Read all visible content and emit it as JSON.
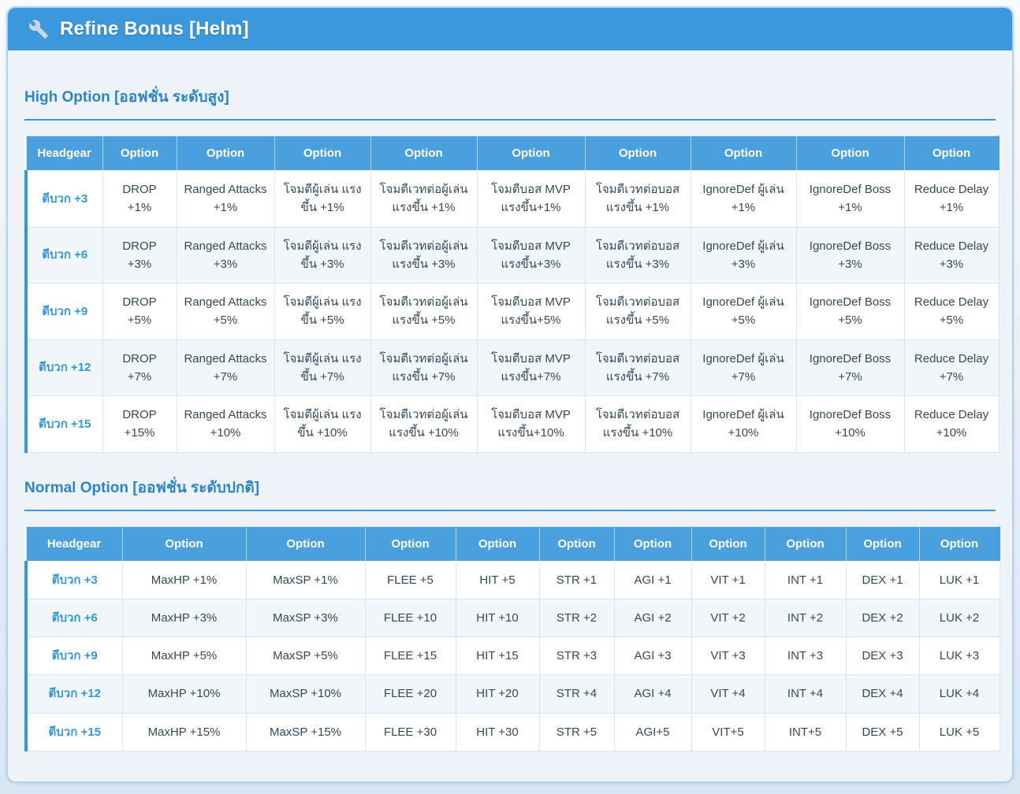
{
  "window": {
    "title": "Refine Bonus [Helm]",
    "title_icon": "wrench-icon"
  },
  "colors": {
    "titlebar_blue": "#3b98dc",
    "table_header_blue": "#4aa0dd",
    "accent_blue": "#3498db",
    "heading_blue": "#2b85c8",
    "cell_text": "#34495e",
    "alt_row_tint": "#f1f6fb",
    "panel_bg": "#eef3fa",
    "panel_border": "#b3d1ed"
  },
  "sections": [
    {
      "heading": "High Option [ออฟชั่น ระดับสูง]",
      "columns": [
        "Headgear",
        "Option",
        "Option",
        "Option",
        "Option",
        "Option",
        "Option",
        "Option",
        "Option",
        "Option"
      ],
      "rows": [
        {
          "headgear": "ตีบวก +3",
          "options": [
            "DROP +1%",
            "Ranged Attacks +1%",
            "โจมตีผู้เล่น แรงขึ้น +1%",
            "โจมตีเวทต่อผู้เล่น แรงขึ้น +1%",
            "โจมตีบอส MVP แรงขึ้น+1%",
            "โจมตีเวทต่อบอส แรงขึ้น +1%",
            "IgnoreDef ผู้เล่น +1%",
            "IgnoreDef Boss +1%",
            "Reduce Delay +1%"
          ]
        },
        {
          "headgear": "ตีบวก +6",
          "options": [
            "DROP +3%",
            "Ranged Attacks +3%",
            "โจมตีผู้เล่น แรงขึ้น +3%",
            "โจมตีเวทต่อผู้เล่น แรงขึ้น +3%",
            "โจมตีบอส MVP แรงขึ้น+3%",
            "โจมตีเวทต่อบอส แรงขึ้น +3%",
            "IgnoreDef ผู้เล่น +3%",
            "IgnoreDef Boss +3%",
            "Reduce Delay +3%"
          ]
        },
        {
          "headgear": "ตีบวก +9",
          "options": [
            "DROP +5%",
            "Ranged Attacks +5%",
            "โจมตีผู้เล่น แรงขึ้น +5%",
            "โจมตีเวทต่อผู้เล่น แรงขึ้น +5%",
            "โจมตีบอส MVP แรงขึ้น+5%",
            "โจมตีเวทต่อบอส แรงขึ้น +5%",
            "IgnoreDef ผู้เล่น +5%",
            "IgnoreDef Boss +5%",
            "Reduce Delay +5%"
          ]
        },
        {
          "headgear": "ตีบวก +12",
          "options": [
            "DROP +7%",
            "Ranged Attacks +7%",
            "โจมตีผู้เล่น แรงขึ้น +7%",
            "โจมตีเวทต่อผู้เล่น แรงขึ้น +7%",
            "โจมตีบอส MVP แรงขึ้น+7%",
            "โจมตีเวทต่อบอส แรงขึ้น +7%",
            "IgnoreDef ผู้เล่น +7%",
            "IgnoreDef Boss +7%",
            "Reduce Delay +7%"
          ]
        },
        {
          "headgear": "ตีบวก +15",
          "options": [
            "DROP +15%",
            "Ranged Attacks +10%",
            "โจมตีผู้เล่น แรงขึ้น +10%",
            "โจมตีเวทต่อผู้เล่น แรงขึ้น +10%",
            "โจมตีบอส MVP แรงขึ้น+10%",
            "โจมตีเวทต่อบอส แรงขึ้น +10%",
            "IgnoreDef ผู้เล่น +10%",
            "IgnoreDef Boss +10%",
            "Reduce Delay +10%"
          ]
        }
      ]
    },
    {
      "heading": "Normal Option [ออฟชั่น ระดับปกติ]",
      "columns": [
        "Headgear",
        "Option",
        "Option",
        "Option",
        "Option",
        "Option",
        "Option",
        "Option",
        "Option",
        "Option",
        "Option"
      ],
      "rows": [
        {
          "headgear": "ตีบวก +3",
          "options": [
            "MaxHP +1%",
            "MaxSP +1%",
            "FLEE +5",
            "HIT +5",
            "STR +1",
            "AGI +1",
            "VIT +1",
            "INT +1",
            "DEX +1",
            "LUK +1"
          ]
        },
        {
          "headgear": "ตีบวก +6",
          "options": [
            "MaxHP +3%",
            "MaxSP +3%",
            "FLEE +10",
            "HIT +10",
            "STR +2",
            "AGI +2",
            "VIT +2",
            "INT +2",
            "DEX +2",
            "LUK +2"
          ]
        },
        {
          "headgear": "ตีบวก +9",
          "options": [
            "MaxHP +5%",
            "MaxSP +5%",
            "FLEE +15",
            "HIT +15",
            "STR +3",
            "AGI +3",
            "VIT +3",
            "INT +3",
            "DEX +3",
            "LUK +3"
          ]
        },
        {
          "headgear": "ตีบวก +12",
          "options": [
            "MaxHP +10%",
            "MaxSP +10%",
            "FLEE +20",
            "HIT +20",
            "STR +4",
            "AGI +4",
            "VIT +4",
            "INT +4",
            "DEX +4",
            "LUK +4"
          ]
        },
        {
          "headgear": "ตีบวก +15",
          "options": [
            "MaxHP +15%",
            "MaxSP +15%",
            "FLEE +30",
            "HIT +30",
            "STR +5",
            "AGI+5",
            "VIT+5",
            "INT+5",
            "DEX +5",
            "LUK +5"
          ]
        }
      ]
    }
  ]
}
